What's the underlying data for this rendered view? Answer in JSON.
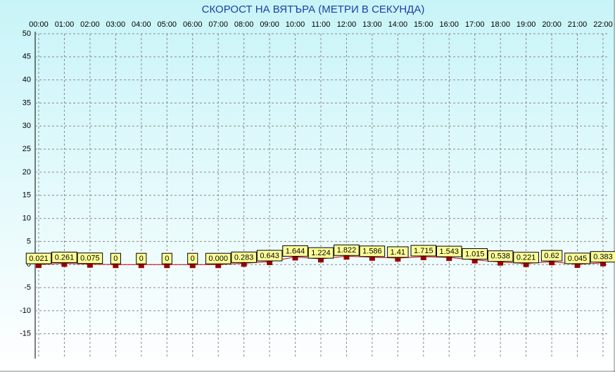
{
  "chart_data": {
    "type": "line",
    "title": "СКОРОСТ НА ВЯТЪРА (МЕТРИ В СЕКУНДА)",
    "categories": [
      "00:00",
      "01:00",
      "02:00",
      "03:00",
      "04:00",
      "05:00",
      "06:00",
      "07:00",
      "08:00",
      "09:00",
      "10:00",
      "11:00",
      "12:00",
      "13:00",
      "14:00",
      "15:00",
      "16:00",
      "17:00",
      "18:00",
      "19:00",
      "20:00",
      "21:00",
      "22:00"
    ],
    "values": [
      0.021,
      0.261,
      0.075,
      0,
      0,
      0,
      0,
      0,
      0.283,
      0.643,
      1.644,
      1.224,
      1.822,
      1.586,
      1.41,
      1.715,
      1.543,
      1.015,
      0.538,
      0.221,
      0.62,
      0.045,
      0.383
    ],
    "value_labels": [
      "0.021",
      "0.261",
      "0.075",
      "0",
      "0",
      "0",
      "0",
      "0.000",
      "0.283",
      "0.643",
      "1.644",
      "1.224",
      "1.822",
      "1.586",
      "1.41",
      "1.715",
      "1.543",
      "1.015",
      "0.538",
      "0.221",
      "0.62",
      "0.045",
      "0.383"
    ],
    "color": "#cc0000",
    "marker_color": "#990000",
    "label_color": "#ffff99",
    "ylim": [
      -20,
      50
    ],
    "yticks": [
      50,
      45,
      40,
      35,
      30,
      25,
      20,
      15,
      10,
      5,
      0,
      -5,
      -10,
      -15
    ],
    "grid": true
  }
}
